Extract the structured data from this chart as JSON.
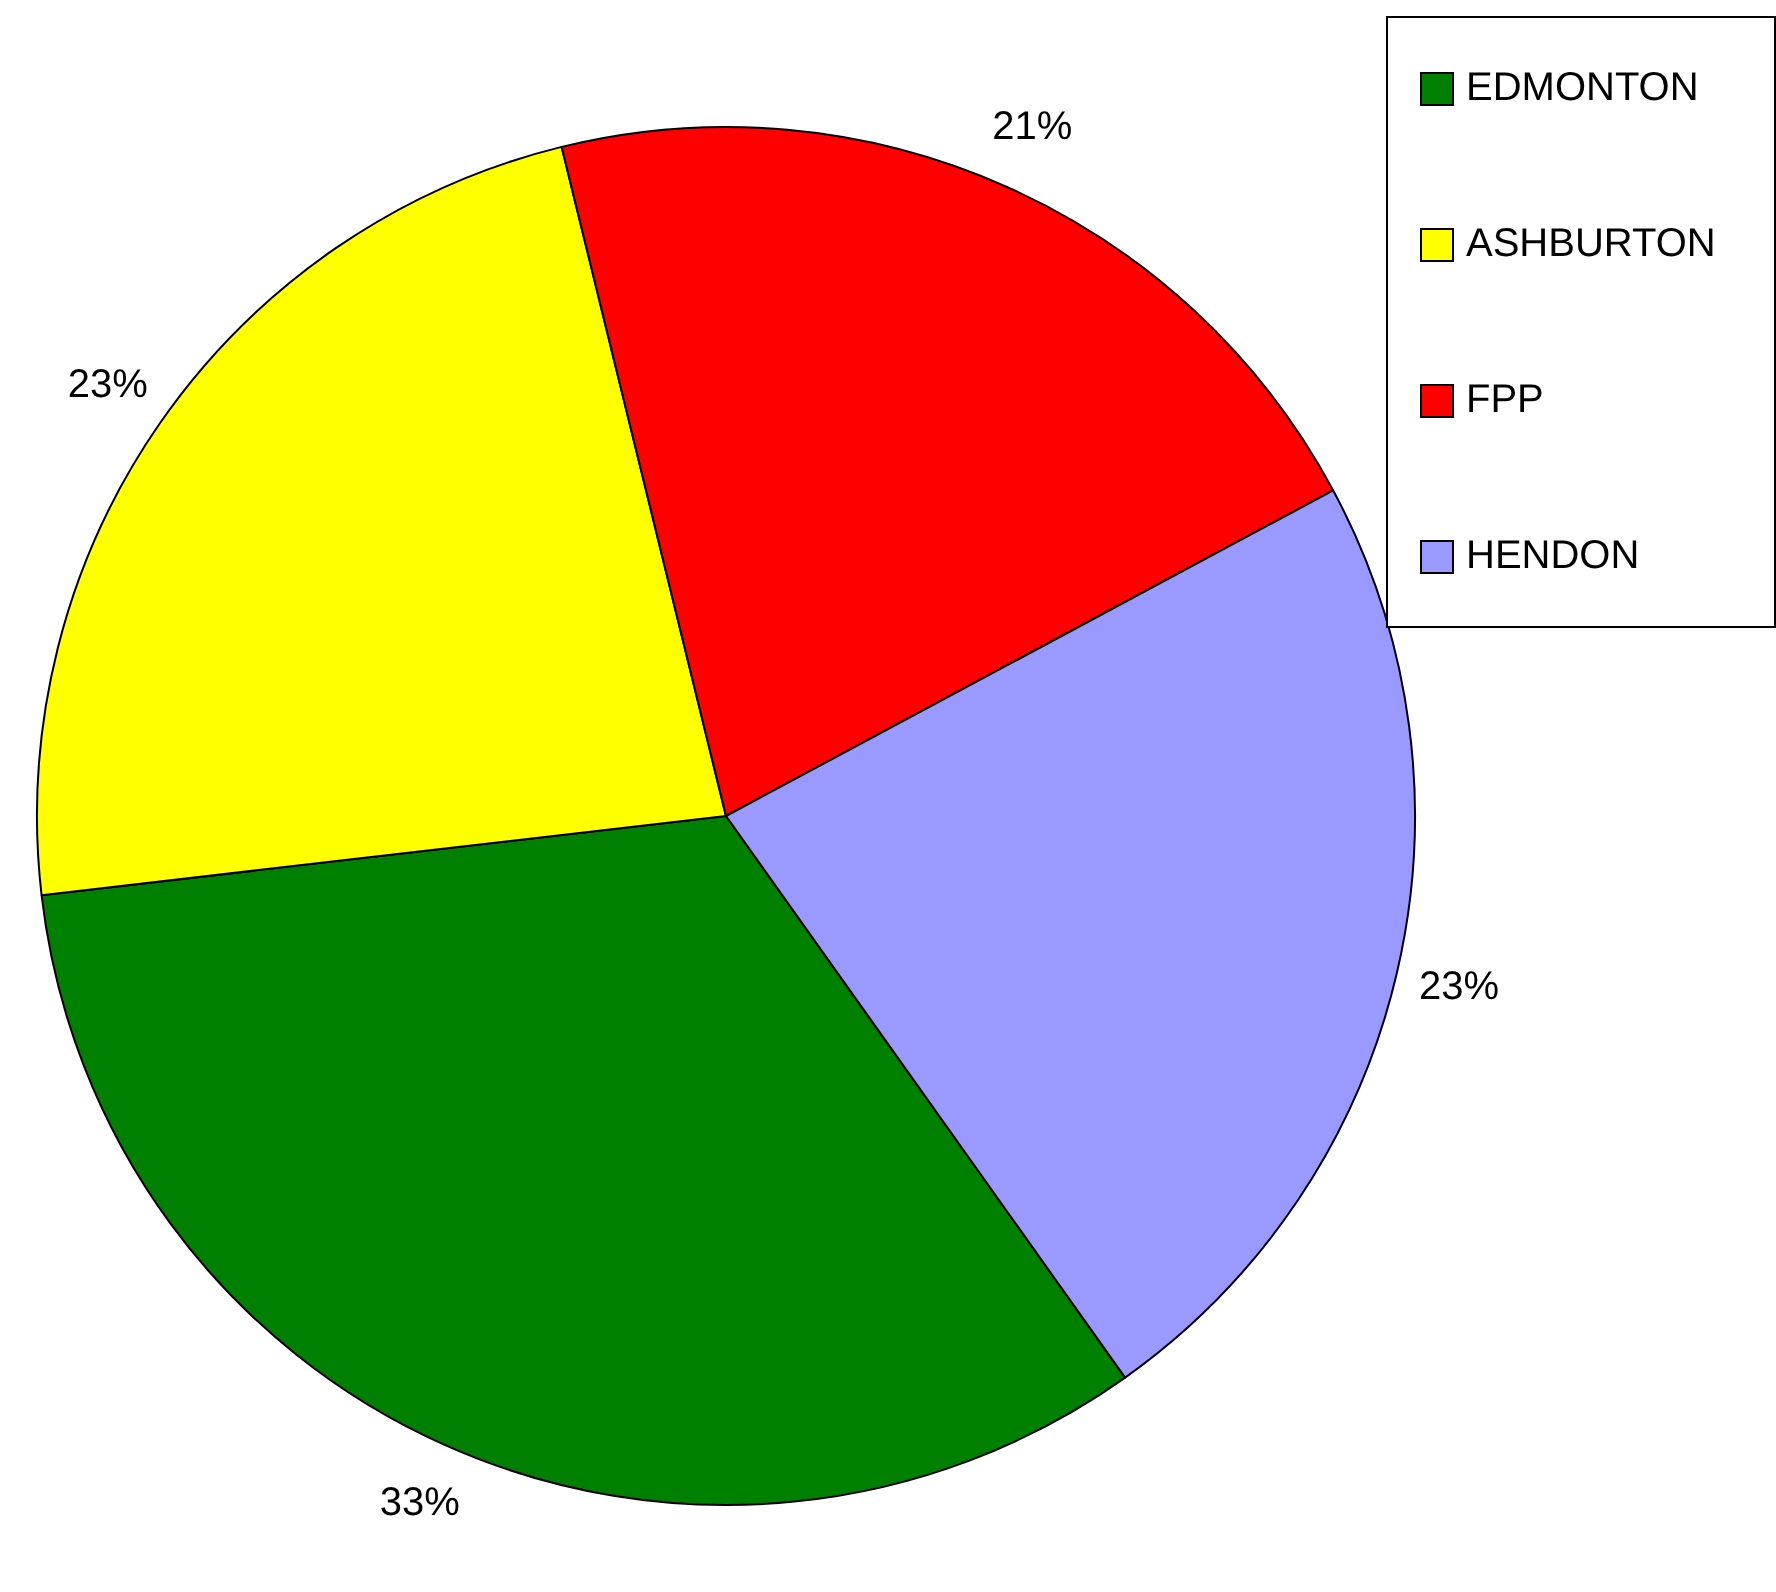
{
  "chart_data": {
    "type": "pie",
    "categories": [
      "EDMONTON",
      "ASHBURTON",
      "FPP",
      "HENDON"
    ],
    "values": [
      33,
      23,
      21,
      23
    ],
    "colors": [
      "#008000",
      "#ffff00",
      "#ff0000",
      "#9999ff"
    ],
    "value_labels": [
      "33%",
      "23%",
      "21%",
      "23%"
    ],
    "legend": "top right"
  }
}
